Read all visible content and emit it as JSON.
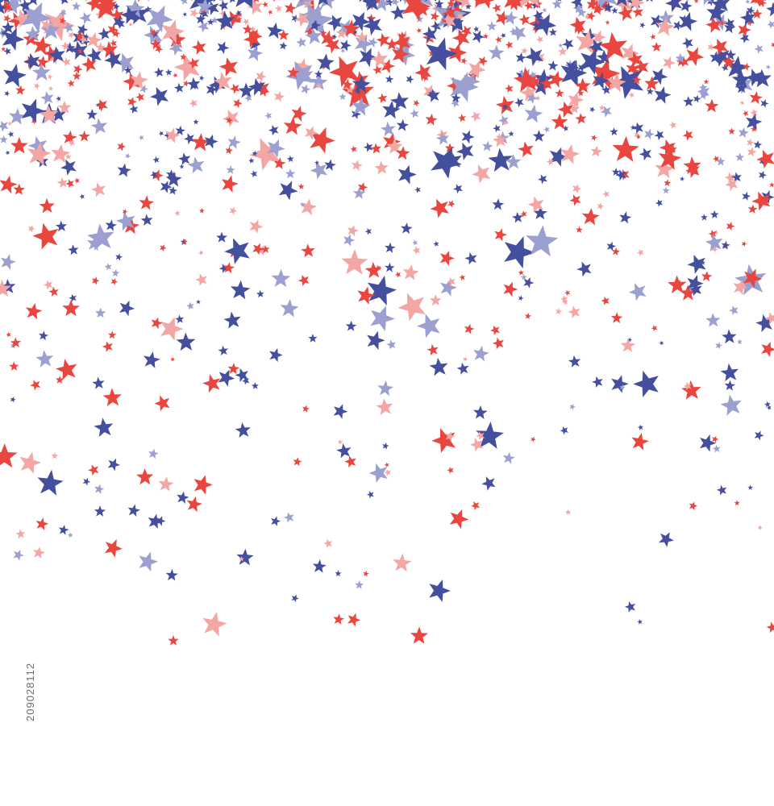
{
  "image": {
    "background": "#ffffff",
    "subject": "confetti-stars",
    "palette": {
      "red": "#e8463f",
      "blue": "#44509e",
      "light_pink": "#f4a6a4",
      "lavender": "#9ba0d0"
    },
    "stock_id": "209028112"
  }
}
